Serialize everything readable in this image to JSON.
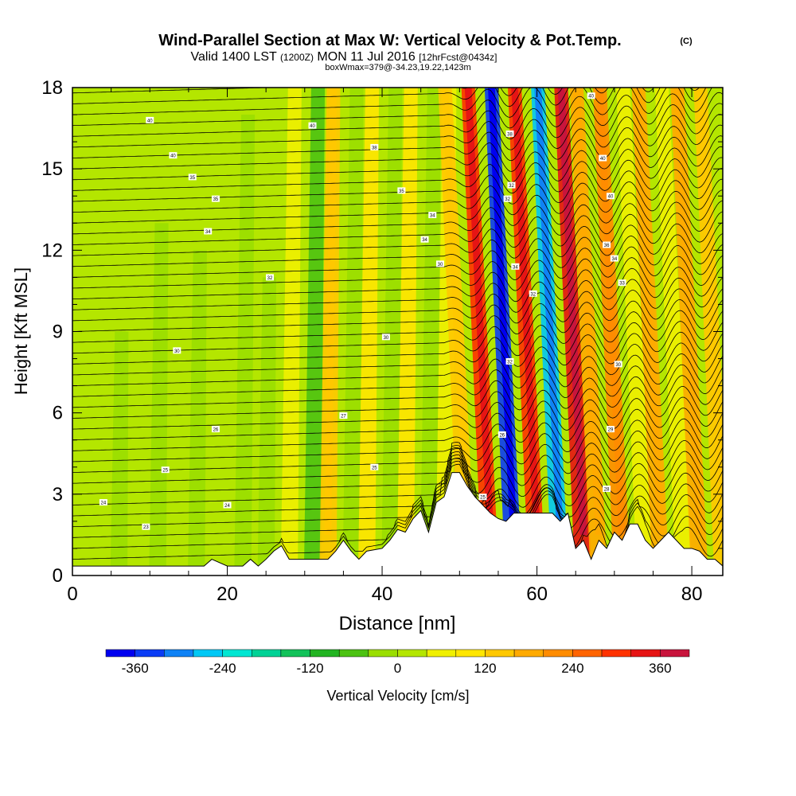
{
  "chart_data": {
    "type": "heatmap",
    "title": "Wind-Parallel Section at Max W: Vertical Velocity & Pot.Temp.",
    "title_mark": "(C)",
    "subtitle_parts": [
      "Valid 1400 LST",
      "(1200Z)",
      "MON 11 Jul 2016",
      "[12hrFcst@0434z]"
    ],
    "subsubtitle": "boxWmax=379@-34.23,19.22,1423m",
    "xlabel": "Distance [nm]",
    "ylabel": "Height [Kft MSL]",
    "xlim": [
      0,
      84
    ],
    "ylim": [
      0,
      18
    ],
    "xticks": [
      0,
      20,
      40,
      60,
      80
    ],
    "yticks": [
      0,
      3,
      6,
      9,
      12,
      15,
      18
    ],
    "colorbar": {
      "label": "Vertical Velocity [cm/s]",
      "ticks": [
        -360,
        -240,
        -120,
        0,
        120,
        240,
        360
      ],
      "levels": [
        -400,
        -360,
        -320,
        -280,
        -240,
        -200,
        -160,
        -120,
        -80,
        -40,
        0,
        40,
        80,
        120,
        160,
        200,
        240,
        280,
        320,
        360,
        400
      ],
      "colors": [
        "#0000f0",
        "#0a3cf5",
        "#0f82f5",
        "#00c8f5",
        "#00e6d2",
        "#00d296",
        "#12c25a",
        "#22b422",
        "#4cc212",
        "#9ade00",
        "#b4e600",
        "#f0f000",
        "#ffe600",
        "#ffc800",
        "#ffaa00",
        "#ff8c00",
        "#ff6400",
        "#ff3200",
        "#e61414",
        "#c8143c"
      ]
    },
    "w_features": [
      {
        "x": 6,
        "z_top": 9,
        "w": -20
      },
      {
        "x": 11,
        "z_top": 13,
        "w": -20
      },
      {
        "x": 16,
        "z_top": 12,
        "w": -20
      },
      {
        "x": 22,
        "z_top": 17,
        "w": -40
      },
      {
        "x": 25,
        "z_top": 11,
        "w": -40
      },
      {
        "x": 28,
        "z_top": 18,
        "w": 50
      },
      {
        "x": 31,
        "z_top": 18,
        "w": -80
      },
      {
        "x": 33,
        "z_top": 18,
        "w": 120
      },
      {
        "x": 36,
        "z_top": 18,
        "w": -40
      },
      {
        "x": 38,
        "z_top": 18,
        "w": 80
      },
      {
        "x": 41,
        "z_top": 18,
        "w": -40
      },
      {
        "x": 43,
        "z_top": 18,
        "w": 80
      },
      {
        "x": 46,
        "z_top": 18,
        "w": -40
      },
      {
        "x": 48,
        "z_top": 18,
        "w": 60
      },
      {
        "x": 51,
        "z_top": 18,
        "w": 120
      },
      {
        "x": 54,
        "z_top": 18,
        "w": 300
      },
      {
        "x": 57,
        "z_top": 18,
        "w": -340
      },
      {
        "x": 60,
        "z_top": 18,
        "w": 300
      },
      {
        "x": 63,
        "z_top": 18,
        "w": -280
      },
      {
        "x": 66,
        "z_top": 18,
        "w": 340
      },
      {
        "x": 68,
        "z_top": 18,
        "w": 160
      },
      {
        "x": 71,
        "z_top": 18,
        "w": 200
      },
      {
        "x": 74,
        "z_top": 18,
        "w": 40
      },
      {
        "x": 76,
        "z_top": 18,
        "w": 180
      },
      {
        "x": 79,
        "z_top": 18,
        "w": 60
      },
      {
        "x": 81,
        "z_top": 18,
        "w": 160
      },
      {
        "x": 84,
        "z_top": 18,
        "w": 120
      }
    ],
    "terrain": {
      "x": [
        0,
        17,
        18,
        20,
        22,
        23,
        24,
        25,
        26,
        27,
        28,
        30,
        33,
        34,
        35,
        36,
        37,
        38,
        40,
        41,
        42,
        43,
        44,
        45,
        46,
        47,
        48,
        49,
        50,
        51,
        52,
        53,
        54,
        55,
        56,
        57,
        58,
        59,
        60,
        61,
        62,
        63,
        64,
        65,
        66,
        67,
        68,
        69,
        70,
        71,
        72,
        73,
        74,
        75,
        76,
        77,
        78,
        79,
        80,
        81,
        82,
        83,
        84
      ],
      "z": [
        0.35,
        0.35,
        0.6,
        0.35,
        0.35,
        0.6,
        0.35,
        0.6,
        0.9,
        1.1,
        0.6,
        0.6,
        0.6,
        0.9,
        1.3,
        0.9,
        0.6,
        0.9,
        1.0,
        1.3,
        1.7,
        1.6,
        2.1,
        2.4,
        1.6,
        2.7,
        2.9,
        3.8,
        3.8,
        3.3,
        2.9,
        2.6,
        2.3,
        2.1,
        2.0,
        2.3,
        2.3,
        2.3,
        2.3,
        2.3,
        2.3,
        2.0,
        2.3,
        1.0,
        1.3,
        0.6,
        1.3,
        1.0,
        1.6,
        1.3,
        1.9,
        1.9,
        1.3,
        1.0,
        1.3,
        1.6,
        1.3,
        1.0,
        1.0,
        0.9,
        0.6,
        0.6,
        0.35
      ]
    },
    "theta_contours": {
      "base_k": 20,
      "interval_k": 1,
      "lapse_k_per_kft": 2.55,
      "wave_start_x": 48,
      "wave_period_nm": 6.0,
      "wave_amp_kft": 0.55
    },
    "contour_labels": [
      {
        "x": 10,
        "z": 16.8,
        "text": "40"
      },
      {
        "x": 13,
        "z": 15.5,
        "text": "40"
      },
      {
        "x": 15.5,
        "z": 14.7,
        "text": "35"
      },
      {
        "x": 18.5,
        "z": 13.9,
        "text": "35"
      },
      {
        "x": 17.5,
        "z": 12.7,
        "text": "34"
      },
      {
        "x": 25.5,
        "z": 11.0,
        "text": "32"
      },
      {
        "x": 13.5,
        "z": 8.3,
        "text": "30"
      },
      {
        "x": 18.5,
        "z": 5.4,
        "text": "26"
      },
      {
        "x": 12,
        "z": 3.9,
        "text": "25"
      },
      {
        "x": 4,
        "z": 2.7,
        "text": "24"
      },
      {
        "x": 20,
        "z": 2.6,
        "text": "24"
      },
      {
        "x": 9.5,
        "z": 1.8,
        "text": "23"
      },
      {
        "x": 31,
        "z": 16.6,
        "text": "40"
      },
      {
        "x": 39,
        "z": 15.8,
        "text": "38"
      },
      {
        "x": 42.5,
        "z": 14.2,
        "text": "35"
      },
      {
        "x": 46.5,
        "z": 13.3,
        "text": "34"
      },
      {
        "x": 45.5,
        "z": 12.4,
        "text": "34"
      },
      {
        "x": 47.5,
        "z": 11.5,
        "text": "30"
      },
      {
        "x": 40.5,
        "z": 8.8,
        "text": "30"
      },
      {
        "x": 35,
        "z": 5.9,
        "text": "27"
      },
      {
        "x": 39,
        "z": 4.0,
        "text": "25"
      },
      {
        "x": 53,
        "z": 2.9,
        "text": "25"
      },
      {
        "x": 55.5,
        "z": 5.2,
        "text": "26"
      },
      {
        "x": 56.5,
        "z": 16.3,
        "text": "38"
      },
      {
        "x": 56.7,
        "z": 14.4,
        "text": "32"
      },
      {
        "x": 56.2,
        "z": 13.9,
        "text": "32"
      },
      {
        "x": 57.2,
        "z": 11.4,
        "text": "34"
      },
      {
        "x": 59.5,
        "z": 10.4,
        "text": "32"
      },
      {
        "x": 56.5,
        "z": 7.9,
        "text": "32"
      },
      {
        "x": 67,
        "z": 17.7,
        "text": "40"
      },
      {
        "x": 68.5,
        "z": 15.4,
        "text": "40"
      },
      {
        "x": 69.5,
        "z": 14.0,
        "text": "40"
      },
      {
        "x": 69,
        "z": 12.2,
        "text": "36"
      },
      {
        "x": 70,
        "z": 11.7,
        "text": "34"
      },
      {
        "x": 71,
        "z": 10.8,
        "text": "33"
      },
      {
        "x": 70.5,
        "z": 7.8,
        "text": "30"
      },
      {
        "x": 69.5,
        "z": 5.4,
        "text": "29"
      },
      {
        "x": 69,
        "z": 3.2,
        "text": "28"
      }
    ]
  }
}
